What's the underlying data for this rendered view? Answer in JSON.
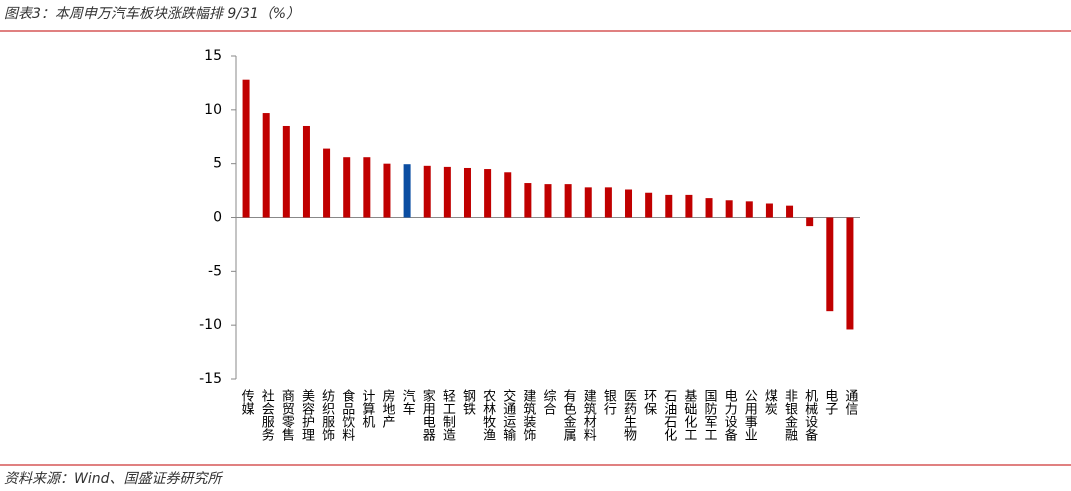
{
  "chart_data": {
    "type": "bar",
    "title": "图表3：本周申万汽车板块涨跌幅排 9/31（%）",
    "source": "资料来源：Wind、国盛证券研究所",
    "categories": [
      "传媒",
      "社会服务",
      "商贸零售",
      "美容护理",
      "纺织服饰",
      "食品饮料",
      "计算机",
      "房地产",
      "汽车",
      "家用电器",
      "轻工制造",
      "钢铁",
      "农林牧渔",
      "交通运输",
      "建筑装饰",
      "综合",
      "有色金属",
      "建筑材料",
      "银行",
      "医药生物",
      "环保",
      "石油石化",
      "基础化工",
      "国防军工",
      "电力设备",
      "公用事业",
      "煤炭",
      "非银金融",
      "机械设备",
      "电子",
      "通信"
    ],
    "values": [
      12.8,
      9.7,
      8.5,
      8.5,
      6.4,
      5.6,
      5.6,
      5.0,
      4.95,
      4.8,
      4.7,
      4.6,
      4.5,
      4.2,
      3.2,
      3.1,
      3.1,
      2.8,
      2.8,
      2.6,
      2.3,
      2.1,
      2.1,
      1.8,
      1.6,
      1.5,
      1.3,
      1.1,
      -0.8,
      -8.7,
      -10.4
    ],
    "colors": [
      "#c00000",
      "#c00000",
      "#c00000",
      "#c00000",
      "#c00000",
      "#c00000",
      "#c00000",
      "#c00000",
      "#0b4ea2",
      "#c00000",
      "#c00000",
      "#c00000",
      "#c00000",
      "#c00000",
      "#c00000",
      "#c00000",
      "#c00000",
      "#c00000",
      "#c00000",
      "#c00000",
      "#c00000",
      "#c00000",
      "#c00000",
      "#c00000",
      "#c00000",
      "#c00000",
      "#c00000",
      "#c00000",
      "#c00000",
      "#c00000",
      "#c00000"
    ],
    "ylim": [
      -15,
      15
    ],
    "yticks": [
      -15,
      -10,
      -5,
      0,
      5,
      10,
      15
    ],
    "grid": false
  }
}
